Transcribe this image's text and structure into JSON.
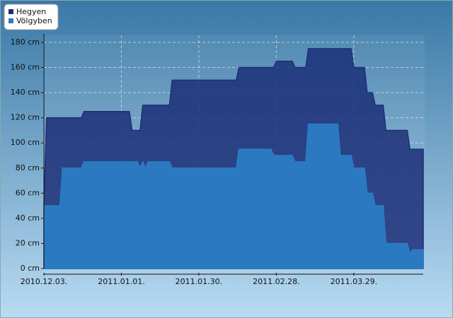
{
  "chart_data": {
    "type": "area",
    "x": [
      "2010.12.03.",
      "2010.12.04.",
      "2010.12.09.",
      "2010.12.10.",
      "2010.12.17.",
      "2010.12.18.",
      "2011.01.04.",
      "2011.01.05.",
      "2011.01.07.",
      "2011.01.08.",
      "2011.01.09.",
      "2011.01.10.",
      "2011.01.11.",
      "2011.01.19.",
      "2011.01.20.",
      "2011.02.13.",
      "2011.02.14.",
      "2011.02.26.",
      "2011.02.27.",
      "2011.02.28.",
      "2011.03.06.",
      "2011.03.07.",
      "2011.03.11.",
      "2011.03.12.",
      "2011.03.23.",
      "2011.03.24.",
      "2011.03.28.",
      "2011.03.29.",
      "2011.04.02.",
      "2011.04.03.",
      "2011.04.05.",
      "2011.04.06.",
      "2011.04.09.",
      "2011.04.10.",
      "2011.04.18.",
      "2011.04.19.",
      "2011.04.20.",
      "2011.04.24."
    ],
    "series": [
      {
        "name": "Hegyen",
        "color": "#1c2f78",
        "values": [
          50,
          120,
          120,
          120,
          120,
          125,
          125,
          110,
          110,
          110,
          130,
          130,
          130,
          130,
          150,
          150,
          160,
          160,
          160,
          165,
          165,
          160,
          160,
          175,
          175,
          175,
          175,
          160,
          160,
          140,
          140,
          130,
          130,
          110,
          110,
          95,
          95,
          95
        ]
      },
      {
        "name": "Völgyben",
        "color": "#2a7cc4",
        "values": [
          50,
          50,
          50,
          80,
          80,
          85,
          85,
          85,
          85,
          80,
          85,
          80,
          85,
          85,
          80,
          80,
          95,
          95,
          90,
          90,
          90,
          85,
          85,
          115,
          115,
          90,
          90,
          80,
          80,
          60,
          60,
          50,
          50,
          20,
          20,
          12,
          15,
          15
        ]
      }
    ],
    "xlim": [
      "2010.12.03.",
      "2011.04.24."
    ],
    "xticks": [
      "2010.12.03.",
      "2011.01.01.",
      "2011.01.30.",
      "2011.02.28.",
      "2011.03.29."
    ],
    "ylim": [
      0,
      180
    ],
    "yticks": [
      {
        "value": 0,
        "label": "0 cm"
      },
      {
        "value": 20,
        "label": "20 cm"
      },
      {
        "value": 40,
        "label": "40 cm"
      },
      {
        "value": 60,
        "label": "60 cm"
      },
      {
        "value": 80,
        "label": "80 cm"
      },
      {
        "value": 100,
        "label": "100 cm"
      },
      {
        "value": 120,
        "label": "120 cm"
      },
      {
        "value": 140,
        "label": "140 cm"
      },
      {
        "value": 160,
        "label": "160 cm"
      },
      {
        "value": 180,
        "label": "180 cm"
      }
    ],
    "grid": true
  }
}
